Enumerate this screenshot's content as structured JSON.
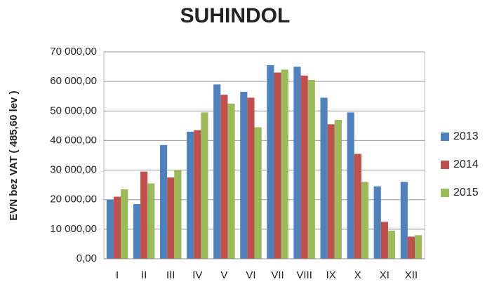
{
  "chart_data": {
    "type": "bar",
    "title": "SUHINDOL",
    "y_label": "EVN bez VAT ( 485,60 lev )",
    "categories": [
      "I",
      "II",
      "III",
      "IV",
      "V",
      "VI",
      "VII",
      "VIII",
      "IX",
      "X",
      "XI",
      "XII"
    ],
    "series": [
      {
        "name": "2013",
        "color": "#4f81bd",
        "values": [
          20000,
          18500,
          38500,
          43000,
          59000,
          56500,
          65500,
          65000,
          54500,
          49500,
          24500,
          26000
        ]
      },
      {
        "name": "2014",
        "color": "#c0504d",
        "values": [
          21000,
          29500,
          27500,
          43500,
          55500,
          54500,
          63000,
          62000,
          45500,
          35500,
          12500,
          7500
        ]
      },
      {
        "name": "2015",
        "color": "#9bbb59",
        "values": [
          23500,
          25500,
          30000,
          49500,
          52500,
          44500,
          64000,
          60500,
          47000,
          26000,
          9500,
          8000
        ]
      }
    ],
    "ylim": [
      0,
      70000
    ],
    "yticks": [
      {
        "value": 0,
        "label": "0,00"
      },
      {
        "value": 10000,
        "label": "10 000,00"
      },
      {
        "value": 20000,
        "label": "20 000,00"
      },
      {
        "value": 30000,
        "label": "30 000,00"
      },
      {
        "value": 40000,
        "label": "40 000,00"
      },
      {
        "value": 50000,
        "label": "50 000,00"
      },
      {
        "value": 60000,
        "label": "60 000,00"
      },
      {
        "value": 70000,
        "label": "70 000,00"
      }
    ],
    "grid": true,
    "legend": "right"
  }
}
